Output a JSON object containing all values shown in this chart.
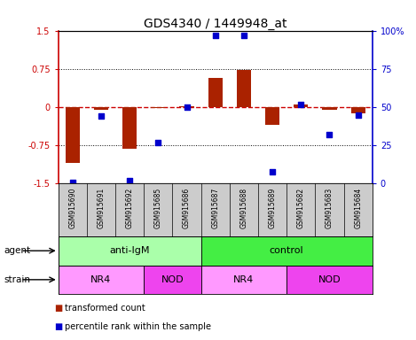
{
  "title": "GDS4340 / 1449948_at",
  "samples": [
    "GSM915690",
    "GSM915691",
    "GSM915692",
    "GSM915685",
    "GSM915686",
    "GSM915687",
    "GSM915688",
    "GSM915689",
    "GSM915682",
    "GSM915683",
    "GSM915684"
  ],
  "transformed_count": [
    -1.1,
    -0.05,
    -0.82,
    -0.02,
    0.02,
    0.58,
    0.72,
    -0.35,
    0.05,
    -0.05,
    -0.12
  ],
  "percentile_rank": [
    1,
    44,
    2,
    27,
    50,
    97,
    97,
    8,
    52,
    32,
    45
  ],
  "ylim_left": [
    -1.5,
    1.5
  ],
  "ylim_right": [
    0,
    100
  ],
  "yticks_left": [
    -1.5,
    -0.75,
    0,
    0.75,
    1.5
  ],
  "ytick_labels_left": [
    "-1.5",
    "-0.75",
    "0",
    "0.75",
    "1.5"
  ],
  "yticks_right": [
    0,
    25,
    50,
    75,
    100
  ],
  "ytick_labels_right": [
    "0",
    "25",
    "50",
    "75",
    "100%"
  ],
  "bar_color": "#aa2200",
  "scatter_color": "#0000cc",
  "agent_groups": [
    {
      "label": "anti-IgM",
      "start": 0,
      "end": 5,
      "color": "#aaffaa"
    },
    {
      "label": "control",
      "start": 5,
      "end": 11,
      "color": "#44ee44"
    }
  ],
  "strain_groups": [
    {
      "label": "NR4",
      "start": 0,
      "end": 3,
      "color": "#ff99ff"
    },
    {
      "label": "NOD",
      "start": 3,
      "end": 5,
      "color": "#ee44ee"
    },
    {
      "label": "NR4",
      "start": 5,
      "end": 8,
      "color": "#ff99ff"
    },
    {
      "label": "NOD",
      "start": 8,
      "end": 11,
      "color": "#ee44ee"
    }
  ],
  "legend_items": [
    {
      "label": "transformed count",
      "color": "#aa2200"
    },
    {
      "label": "percentile rank within the sample",
      "color": "#0000cc"
    }
  ],
  "bar_width": 0.5,
  "zero_line_color": "#cc0000",
  "dotted_line_color": "#000000",
  "left_axis_color": "#cc0000",
  "right_axis_color": "#0000cc",
  "sample_box_color": "#cccccc",
  "fig_width": 4.69,
  "fig_height": 3.84,
  "fig_dpi": 100
}
